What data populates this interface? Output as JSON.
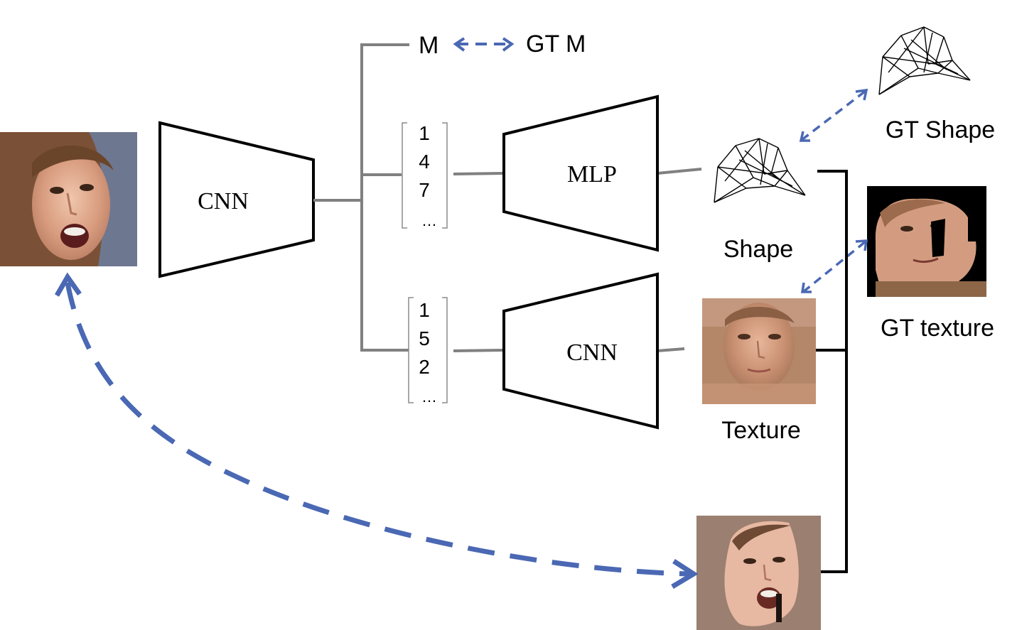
{
  "nodes": {
    "encoder_label": "CNN",
    "shape_decoder_label": "MLP",
    "texture_decoder_label": "CNN",
    "m_label": "M",
    "gt_m_label": "GT M",
    "shape_label": "Shape",
    "gt_shape_label": "GT Shape",
    "texture_label": "Texture",
    "gt_texture_label": "GT texture"
  },
  "shape_vector": {
    "values": [
      "1",
      "4",
      "7"
    ],
    "ellipsis": "…"
  },
  "texture_vector": {
    "values": [
      "1",
      "5",
      "2"
    ],
    "ellipsis": "…"
  },
  "colors": {
    "arrow": "#4a68b3",
    "grey_connector": "#808080",
    "black_connector": "#000000"
  },
  "icons": {
    "input_face": "face-photo-icon",
    "shape_mesh": "wireframe-mesh-icon",
    "texture_map": "face-texture-icon",
    "gt_texture_map": "masked-face-texture-icon",
    "rendered_face": "rendered-face-icon"
  }
}
